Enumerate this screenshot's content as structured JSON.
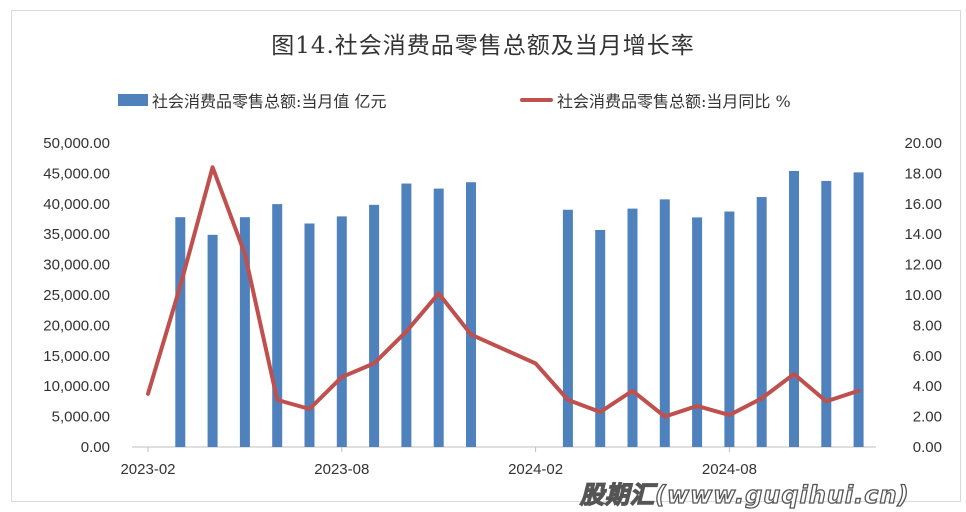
{
  "chart_data": {
    "type": "bar+line",
    "title": "图14.社会消费品零售总额及当月增长率",
    "x": [
      "2023-02",
      "2023-03",
      "2023-04",
      "2023-05",
      "2023-06",
      "2023-07",
      "2023-08",
      "2023-09",
      "2023-10",
      "2023-11",
      "2023-12",
      "2024-01",
      "2024-02",
      "2024-03",
      "2024-04",
      "2024-05",
      "2024-06",
      "2024-07",
      "2024-08",
      "2024-09",
      "2024-10",
      "2024-11",
      "2024-12"
    ],
    "x_tick_labels": [
      "2023-02",
      "2023-08",
      "2024-02",
      "2024-08"
    ],
    "series": [
      {
        "name": "社会消费品零售总额:当月值 亿元",
        "type": "bar",
        "axis": "left",
        "color": "#4f81bd",
        "values": [
          null,
          37800,
          34900,
          37800,
          39950,
          36760,
          37930,
          39830,
          43330,
          42500,
          43550,
          null,
          null,
          39020,
          35700,
          39210,
          40730,
          37760,
          38730,
          41110,
          45400,
          43760,
          45170
        ]
      },
      {
        "name": "社会消费品零售总额:当月同比 %",
        "type": "line",
        "axis": "right",
        "color": "#c0504d",
        "values": [
          3.5,
          10.6,
          18.4,
          12.7,
          3.1,
          2.5,
          4.6,
          5.5,
          7.6,
          10.1,
          7.4,
          null,
          5.5,
          3.1,
          2.3,
          3.7,
          2.0,
          2.7,
          2.1,
          3.2,
          4.8,
          3.0,
          3.7
        ]
      }
    ],
    "y_left": {
      "range": [
        0,
        50000
      ],
      "ticks": [
        "0.00",
        "5,000.00",
        "10,000.00",
        "15,000.00",
        "20,000.00",
        "25,000.00",
        "30,000.00",
        "35,000.00",
        "40,000.00",
        "45,000.00",
        "50,000.00"
      ]
    },
    "y_right": {
      "range": [
        0,
        20
      ],
      "ticks": [
        "0.00",
        "2.00",
        "4.00",
        "6.00",
        "8.00",
        "10.00",
        "12.00",
        "14.00",
        "16.00",
        "18.00",
        "20.00"
      ]
    },
    "legend": "top",
    "grid": false
  },
  "watermark": "股期汇(www.guqihui.cn)"
}
